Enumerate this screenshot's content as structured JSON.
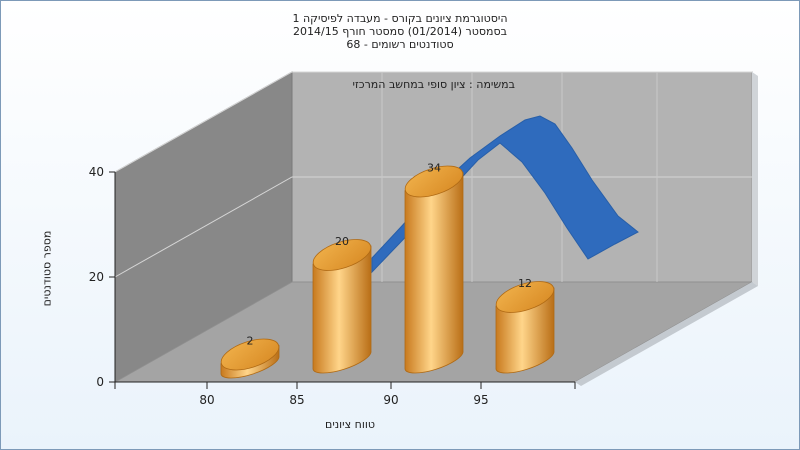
{
  "chart_data": {
    "type": "bar",
    "title_lines": [
      "היסטוגרמת ציונים בקורס - מעבדה לפיסיקה 1",
      "בסמסטר  (01/2014)  סמסטר חורף 2014/15",
      "סטודנטים רשומים - 68"
    ],
    "subtitle": "במשימה : ציון סופי במחשב המרכזי",
    "xlabel": "טווח ציונים",
    "ylabel": "מספר סטודנטים",
    "categories": [
      "80",
      "85",
      "90",
      "95"
    ],
    "values": [
      2,
      20,
      34,
      12
    ],
    "yticks": [
      0,
      20,
      40
    ],
    "ylim": [
      0,
      40
    ],
    "trend_line": "blue ribbon curve (normal distribution)",
    "colors": {
      "bar": "#e7a23e",
      "curve": "#2f6bbd",
      "back_wall": "#b3b3b3",
      "side_wall": "#8a8a8a"
    },
    "grid": true
  }
}
